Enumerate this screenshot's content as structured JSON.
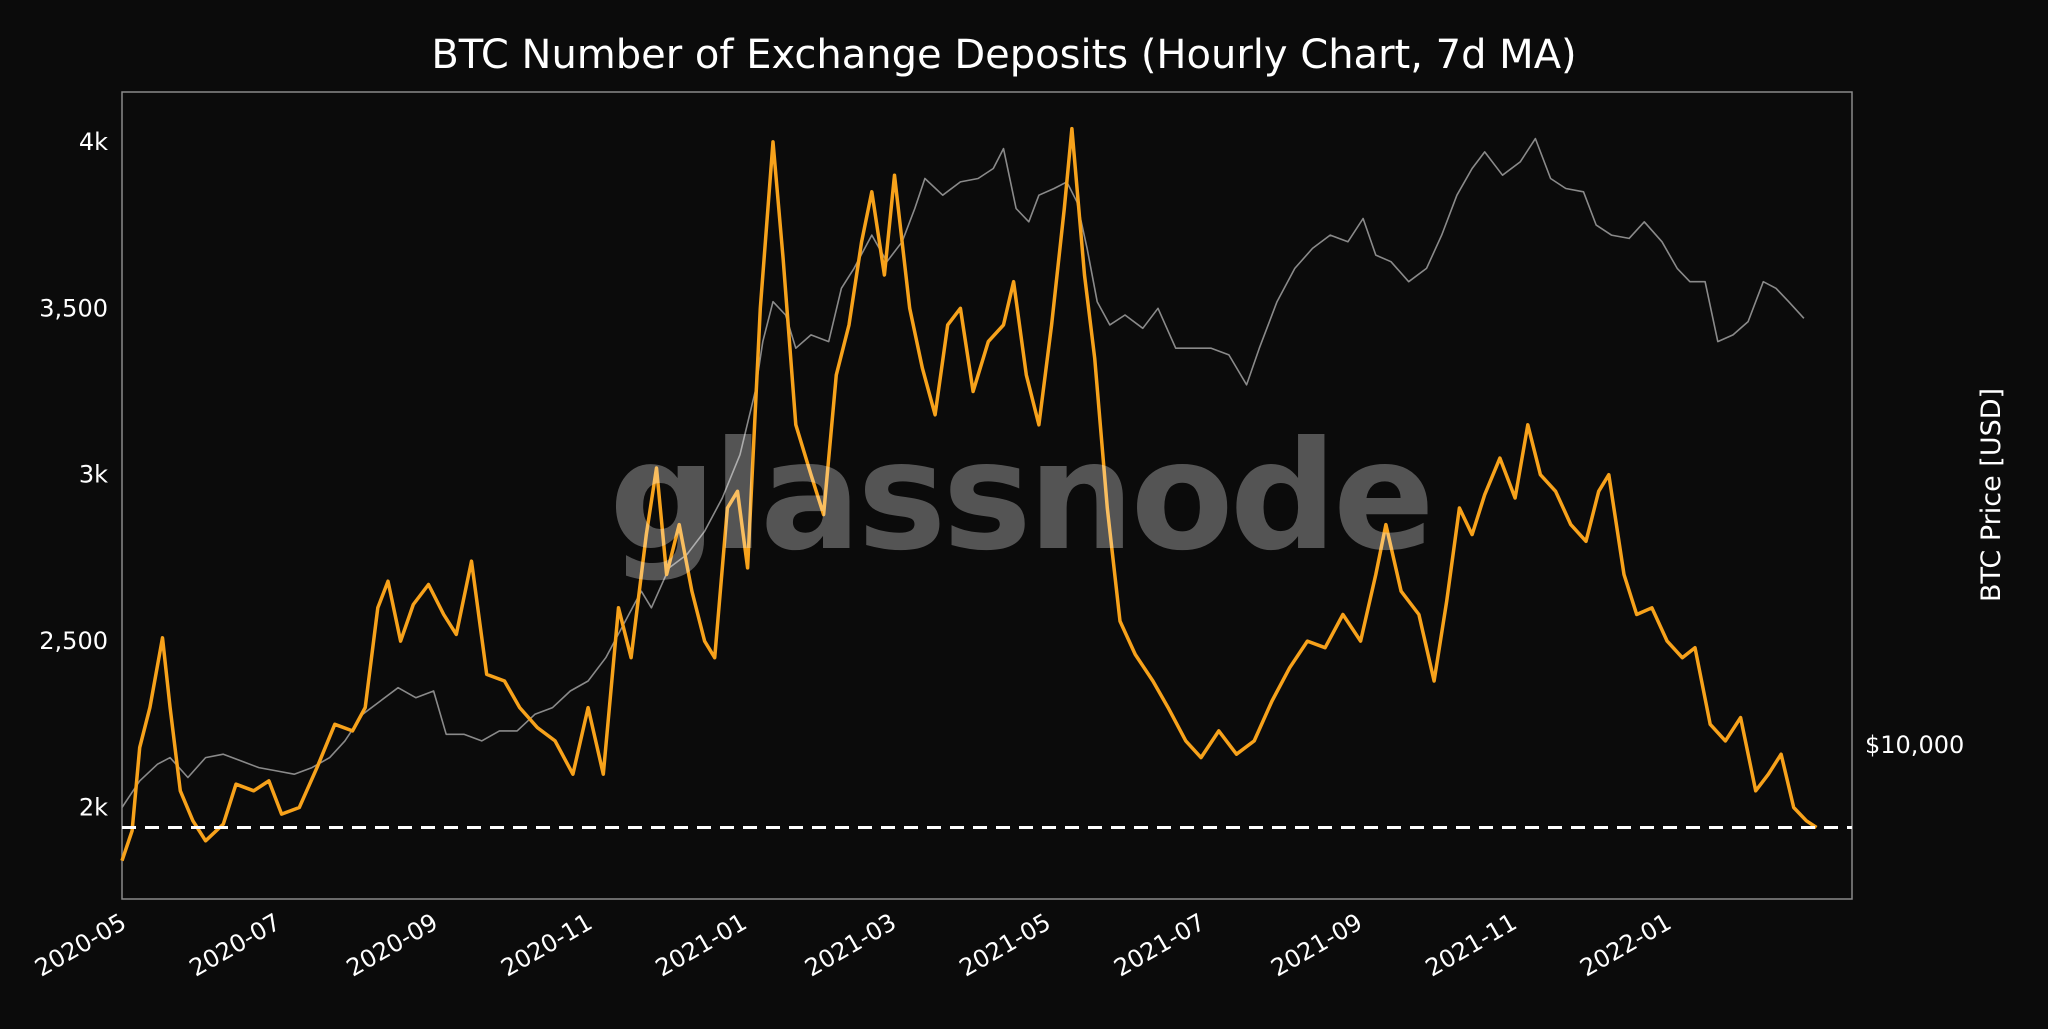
{
  "chart_data": {
    "type": "line",
    "title": "BTC Number of Exchange Deposits (Hourly Chart, 7d MA)",
    "watermark": "glassnode",
    "xlabel": "",
    "ylabel": "",
    "y2label": "BTC Price [USD]",
    "y2_ticks": [
      {
        "value": 10000,
        "label": "$10,000"
      }
    ],
    "xlim": [
      "2020-05-01",
      "2022-03-15"
    ],
    "ylim": [
      1725,
      4150
    ],
    "x_ticks": [
      "2020-05",
      "2020-07",
      "2020-09",
      "2020-11",
      "2021-01",
      "2021-03",
      "2021-05",
      "2021-07",
      "2021-09",
      "2021-11",
      "2022-01"
    ],
    "y_ticks": [
      {
        "value": 2000,
        "label": "2k"
      },
      {
        "value": 2500,
        "label": "2,500"
      },
      {
        "value": 3000,
        "label": "3k"
      },
      {
        "value": 3500,
        "label": "3,500"
      },
      {
        "value": 4000,
        "label": "4k"
      }
    ],
    "threshold": {
      "value": 1940,
      "style": "dashed",
      "color": "#ffffff"
    },
    "grid": false,
    "legend": "none",
    "series": [
      {
        "color": "#f7a21b",
        "points": [
          [
            "2020-05-01",
            1840
          ],
          [
            "2020-05-05",
            1930
          ],
          [
            "2020-05-08",
            2180
          ],
          [
            "2020-05-12",
            2300
          ],
          [
            "2020-05-17",
            2510
          ],
          [
            "2020-05-20",
            2300
          ],
          [
            "2020-05-24",
            2050
          ],
          [
            "2020-05-29",
            1960
          ],
          [
            "2020-06-03",
            1900
          ],
          [
            "2020-06-10",
            1950
          ],
          [
            "2020-06-15",
            2070
          ],
          [
            "2020-06-22",
            2050
          ],
          [
            "2020-06-28",
            2080
          ],
          [
            "2020-07-03",
            1980
          ],
          [
            "2020-07-10",
            2000
          ],
          [
            "2020-07-17",
            2120
          ],
          [
            "2020-07-24",
            2250
          ],
          [
            "2020-07-31",
            2230
          ],
          [
            "2020-08-05",
            2300
          ],
          [
            "2020-08-10",
            2600
          ],
          [
            "2020-08-14",
            2680
          ],
          [
            "2020-08-19",
            2500
          ],
          [
            "2020-08-24",
            2610
          ],
          [
            "2020-08-30",
            2670
          ],
          [
            "2020-09-05",
            2580
          ],
          [
            "2020-09-10",
            2520
          ],
          [
            "2020-09-16",
            2740
          ],
          [
            "2020-09-22",
            2400
          ],
          [
            "2020-09-29",
            2380
          ],
          [
            "2020-10-05",
            2300
          ],
          [
            "2020-10-12",
            2240
          ],
          [
            "2020-10-19",
            2200
          ],
          [
            "2020-10-26",
            2100
          ],
          [
            "2020-11-01",
            2300
          ],
          [
            "2020-11-07",
            2100
          ],
          [
            "2020-11-13",
            2600
          ],
          [
            "2020-11-18",
            2450
          ],
          [
            "2020-11-24",
            2820
          ],
          [
            "2020-11-28",
            3020
          ],
          [
            "2020-12-02",
            2700
          ],
          [
            "2020-12-07",
            2850
          ],
          [
            "2020-12-12",
            2650
          ],
          [
            "2020-12-17",
            2500
          ],
          [
            "2020-12-21",
            2450
          ],
          [
            "2020-12-26",
            2900
          ],
          [
            "2020-12-30",
            2950
          ],
          [
            "2021-01-03",
            2720
          ],
          [
            "2021-01-08",
            3500
          ],
          [
            "2021-01-13",
            4000
          ],
          [
            "2021-01-17",
            3650
          ],
          [
            "2021-01-22",
            3150
          ],
          [
            "2021-01-28",
            3000
          ],
          [
            "2021-02-02",
            2880
          ],
          [
            "2021-02-07",
            3300
          ],
          [
            "2021-02-12",
            3450
          ],
          [
            "2021-02-17",
            3700
          ],
          [
            "2021-02-21",
            3850
          ],
          [
            "2021-02-26",
            3600
          ],
          [
            "2021-03-02",
            3900
          ],
          [
            "2021-03-08",
            3500
          ],
          [
            "2021-03-13",
            3320
          ],
          [
            "2021-03-18",
            3180
          ],
          [
            "2021-03-23",
            3450
          ],
          [
            "2021-03-28",
            3500
          ],
          [
            "2021-04-02",
            3250
          ],
          [
            "2021-04-08",
            3400
          ],
          [
            "2021-04-14",
            3450
          ],
          [
            "2021-04-18",
            3580
          ],
          [
            "2021-04-23",
            3300
          ],
          [
            "2021-04-28",
            3150
          ],
          [
            "2021-05-03",
            3450
          ],
          [
            "2021-05-08",
            3800
          ],
          [
            "2021-05-11",
            4040
          ],
          [
            "2021-05-16",
            3600
          ],
          [
            "2021-05-20",
            3350
          ],
          [
            "2021-05-25",
            2900
          ],
          [
            "2021-05-30",
            2560
          ],
          [
            "2021-06-05",
            2460
          ],
          [
            "2021-06-12",
            2380
          ],
          [
            "2021-06-18",
            2300
          ],
          [
            "2021-06-25",
            2200
          ],
          [
            "2021-07-01",
            2150
          ],
          [
            "2021-07-08",
            2230
          ],
          [
            "2021-07-15",
            2160
          ],
          [
            "2021-07-22",
            2200
          ],
          [
            "2021-07-29",
            2320
          ],
          [
            "2021-08-05",
            2420
          ],
          [
            "2021-08-12",
            2500
          ],
          [
            "2021-08-19",
            2480
          ],
          [
            "2021-08-26",
            2580
          ],
          [
            "2021-09-02",
            2500
          ],
          [
            "2021-09-08",
            2700
          ],
          [
            "2021-09-12",
            2850
          ],
          [
            "2021-09-18",
            2650
          ],
          [
            "2021-09-25",
            2580
          ],
          [
            "2021-10-01",
            2380
          ],
          [
            "2021-10-06",
            2620
          ],
          [
            "2021-10-11",
            2900
          ],
          [
            "2021-10-16",
            2820
          ],
          [
            "2021-10-21",
            2940
          ],
          [
            "2021-10-27",
            3050
          ],
          [
            "2021-11-02",
            2930
          ],
          [
            "2021-11-07",
            3150
          ],
          [
            "2021-11-12",
            3000
          ],
          [
            "2021-11-18",
            2950
          ],
          [
            "2021-11-24",
            2850
          ],
          [
            "2021-11-30",
            2800
          ],
          [
            "2021-12-05",
            2950
          ],
          [
            "2021-12-09",
            3000
          ],
          [
            "2021-12-15",
            2700
          ],
          [
            "2021-12-20",
            2580
          ],
          [
            "2021-12-26",
            2600
          ],
          [
            "2022-01-01",
            2500
          ],
          [
            "2022-01-07",
            2450
          ],
          [
            "2022-01-12",
            2480
          ],
          [
            "2022-01-18",
            2250
          ],
          [
            "2022-01-24",
            2200
          ],
          [
            "2022-01-30",
            2270
          ],
          [
            "2022-02-05",
            2050
          ],
          [
            "2022-02-10",
            2100
          ],
          [
            "2022-02-15",
            2160
          ],
          [
            "2022-02-20",
            2000
          ],
          [
            "2022-02-25",
            1960
          ],
          [
            "2022-03-01",
            1940
          ]
        ]
      },
      {
        "color": "#8a8a8a",
        "points": [
          [
            "2020-05-01",
            2000
          ],
          [
            "2020-05-08",
            2080
          ],
          [
            "2020-05-15",
            2130
          ],
          [
            "2020-05-20",
            2150
          ],
          [
            "2020-05-27",
            2090
          ],
          [
            "2020-06-03",
            2150
          ],
          [
            "2020-06-10",
            2160
          ],
          [
            "2020-06-17",
            2140
          ],
          [
            "2020-06-24",
            2120
          ],
          [
            "2020-07-01",
            2110
          ],
          [
            "2020-07-08",
            2100
          ],
          [
            "2020-07-15",
            2120
          ],
          [
            "2020-07-22",
            2150
          ],
          [
            "2020-07-28",
            2200
          ],
          [
            "2020-08-04",
            2280
          ],
          [
            "2020-08-11",
            2320
          ],
          [
            "2020-08-18",
            2360
          ],
          [
            "2020-08-25",
            2330
          ],
          [
            "2020-09-01",
            2350
          ],
          [
            "2020-09-06",
            2220
          ],
          [
            "2020-09-13",
            2220
          ],
          [
            "2020-09-20",
            2200
          ],
          [
            "2020-09-27",
            2230
          ],
          [
            "2020-10-04",
            2230
          ],
          [
            "2020-10-11",
            2280
          ],
          [
            "2020-10-18",
            2300
          ],
          [
            "2020-10-25",
            2350
          ],
          [
            "2020-11-01",
            2380
          ],
          [
            "2020-11-08",
            2450
          ],
          [
            "2020-11-15",
            2550
          ],
          [
            "2020-11-22",
            2650
          ],
          [
            "2020-11-26",
            2600
          ],
          [
            "2020-12-03",
            2720
          ],
          [
            "2020-12-10",
            2760
          ],
          [
            "2020-12-17",
            2830
          ],
          [
            "2020-12-24",
            2930
          ],
          [
            "2020-12-31",
            3060
          ],
          [
            "2021-01-06",
            3250
          ],
          [
            "2021-01-09",
            3400
          ],
          [
            "2021-01-13",
            3520
          ],
          [
            "2021-01-18",
            3480
          ],
          [
            "2021-01-22",
            3380
          ],
          [
            "2021-01-28",
            3420
          ],
          [
            "2021-02-04",
            3400
          ],
          [
            "2021-02-09",
            3560
          ],
          [
            "2021-02-14",
            3620
          ],
          [
            "2021-02-21",
            3720
          ],
          [
            "2021-02-27",
            3640
          ],
          [
            "2021-03-05",
            3700
          ],
          [
            "2021-03-10",
            3800
          ],
          [
            "2021-03-14",
            3890
          ],
          [
            "2021-03-21",
            3840
          ],
          [
            "2021-03-28",
            3880
          ],
          [
            "2021-04-04",
            3890
          ],
          [
            "2021-04-10",
            3920
          ],
          [
            "2021-04-14",
            3980
          ],
          [
            "2021-04-19",
            3800
          ],
          [
            "2021-04-24",
            3760
          ],
          [
            "2021-04-28",
            3840
          ],
          [
            "2021-05-04",
            3860
          ],
          [
            "2021-05-09",
            3880
          ],
          [
            "2021-05-13",
            3820
          ],
          [
            "2021-05-17",
            3680
          ],
          [
            "2021-05-21",
            3520
          ],
          [
            "2021-05-26",
            3450
          ],
          [
            "2021-06-01",
            3480
          ],
          [
            "2021-06-08",
            3440
          ],
          [
            "2021-06-14",
            3500
          ],
          [
            "2021-06-21",
            3380
          ],
          [
            "2021-06-28",
            3380
          ],
          [
            "2021-07-05",
            3380
          ],
          [
            "2021-07-12",
            3360
          ],
          [
            "2021-07-19",
            3270
          ],
          [
            "2021-07-24",
            3380
          ],
          [
            "2021-07-31",
            3520
          ],
          [
            "2021-08-07",
            3620
          ],
          [
            "2021-08-14",
            3680
          ],
          [
            "2021-08-21",
            3720
          ],
          [
            "2021-08-28",
            3700
          ],
          [
            "2021-09-03",
            3770
          ],
          [
            "2021-09-08",
            3660
          ],
          [
            "2021-09-14",
            3640
          ],
          [
            "2021-09-21",
            3580
          ],
          [
            "2021-09-28",
            3620
          ],
          [
            "2021-10-04",
            3720
          ],
          [
            "2021-10-10",
            3840
          ],
          [
            "2021-10-16",
            3920
          ],
          [
            "2021-10-21",
            3970
          ],
          [
            "2021-10-28",
            3900
          ],
          [
            "2021-11-04",
            3940
          ],
          [
            "2021-11-10",
            4010
          ],
          [
            "2021-11-16",
            3890
          ],
          [
            "2021-11-22",
            3860
          ],
          [
            "2021-11-29",
            3850
          ],
          [
            "2021-12-04",
            3750
          ],
          [
            "2021-12-10",
            3720
          ],
          [
            "2021-12-17",
            3710
          ],
          [
            "2021-12-23",
            3760
          ],
          [
            "2021-12-30",
            3700
          ],
          [
            "2022-01-05",
            3620
          ],
          [
            "2022-01-10",
            3580
          ],
          [
            "2022-01-16",
            3580
          ],
          [
            "2022-01-21",
            3400
          ],
          [
            "2022-01-27",
            3420
          ],
          [
            "2022-02-02",
            3460
          ],
          [
            "2022-02-08",
            3580
          ],
          [
            "2022-02-13",
            3560
          ],
          [
            "2022-02-18",
            3520
          ],
          [
            "2022-02-24",
            3470
          ]
        ]
      }
    ]
  }
}
